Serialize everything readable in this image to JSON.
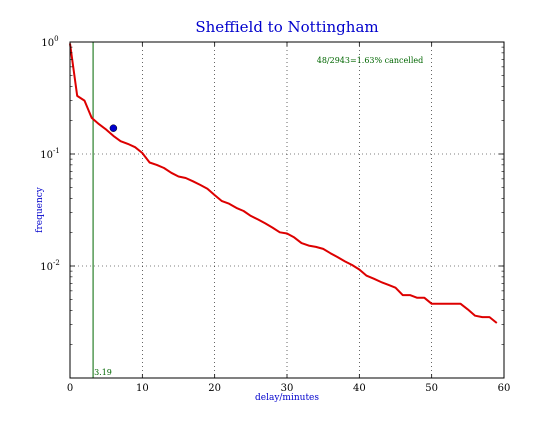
{
  "chart_data": {
    "type": "line",
    "title": "Sheffield to Nottingham",
    "xlabel": "delay/minutes",
    "ylabel": "frequency",
    "xlim": [
      0,
      60
    ],
    "ylim": [
      0.001,
      1
    ],
    "yscale": "log",
    "grid": true,
    "x_ticks": [
      0,
      10,
      20,
      30,
      40,
      50,
      60
    ],
    "x_tick_labels": [
      "0",
      "10",
      "20",
      "30",
      "40",
      "50",
      "60"
    ],
    "y_ticks": [
      {
        "value": 1,
        "mantissa": "10",
        "exponent": "0"
      },
      {
        "value": 0.1,
        "mantissa": "10",
        "exponent": "-1"
      },
      {
        "value": 0.01,
        "mantissa": "10",
        "exponent": "-2"
      }
    ],
    "series": [
      {
        "color": "#dd0000",
        "x": [
          0,
          1,
          2,
          3,
          4,
          5,
          6,
          7,
          8,
          9,
          10,
          11,
          12,
          13,
          14,
          15,
          16,
          17,
          18,
          19,
          20,
          21,
          22,
          23,
          24,
          25,
          26,
          27,
          28,
          29,
          30,
          31,
          32,
          33,
          34,
          35,
          36,
          37,
          38,
          39,
          40,
          41,
          42,
          43,
          44,
          45,
          46,
          47,
          48,
          49,
          50,
          51,
          52,
          53,
          54,
          55,
          56,
          57,
          58,
          59
        ],
        "values": [
          0.97,
          0.33,
          0.3,
          0.21,
          0.185,
          0.165,
          0.145,
          0.13,
          0.123,
          0.115,
          0.102,
          0.084,
          0.08,
          0.075,
          0.068,
          0.063,
          0.061,
          0.057,
          0.053,
          0.049,
          0.043,
          0.038,
          0.036,
          0.033,
          0.031,
          0.028,
          0.026,
          0.024,
          0.022,
          0.02,
          0.0195,
          0.018,
          0.016,
          0.0152,
          0.0148,
          0.0142,
          0.013,
          0.012,
          0.011,
          0.0102,
          0.0093,
          0.0082,
          0.0077,
          0.0072,
          0.0068,
          0.0064,
          0.0055,
          0.0055,
          0.0052,
          0.0052,
          0.0046,
          0.0046,
          0.0046,
          0.0046,
          0.0046,
          0.0041,
          0.0036,
          0.0035,
          0.0035,
          0.0031
        ]
      }
    ],
    "marker_point": {
      "x": 6,
      "y": 0.17,
      "color": "#0000cc"
    },
    "vertical_line": {
      "x": 3.19,
      "label": "3.19",
      "color": "#006600"
    },
    "annotation": "48/2943=1.63% cancelled"
  }
}
